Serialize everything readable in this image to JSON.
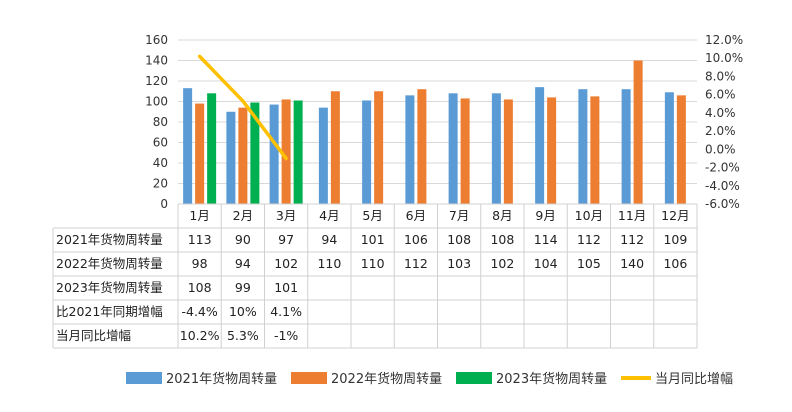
{
  "chart_data": {
    "type": "bar",
    "title": "",
    "categories": [
      "1月",
      "2月",
      "3月",
      "4月",
      "5月",
      "6月",
      "7月",
      "8月",
      "9月",
      "10月",
      "11月",
      "12月"
    ],
    "series": [
      {
        "name": "2021年货物周转量",
        "type": "bar",
        "axis": "left",
        "color": "#5B9BD5",
        "values": [
          113,
          90,
          97,
          94,
          101,
          106,
          108,
          108,
          114,
          112,
          112,
          109
        ]
      },
      {
        "name": "2022年货物周转量",
        "type": "bar",
        "axis": "left",
        "color": "#ED7D31",
        "values": [
          98,
          94,
          102,
          110,
          110,
          112,
          103,
          102,
          104,
          105,
          140,
          106
        ]
      },
      {
        "name": "2023年货物周转量",
        "type": "bar",
        "axis": "left",
        "color": "#00B050",
        "values": [
          108,
          99,
          101,
          null,
          null,
          null,
          null,
          null,
          null,
          null,
          null,
          null
        ]
      },
      {
        "name": "当月同比增幅",
        "type": "line",
        "axis": "right",
        "color": "#FFC000",
        "values": [
          10.2,
          5.3,
          -1,
          null,
          null,
          null,
          null,
          null,
          null,
          null,
          null,
          null
        ]
      }
    ],
    "extra_rows": [
      {
        "name": "比2021年同期增幅",
        "values": [
          "-4.4%",
          "10%",
          "4.1%",
          "",
          "",
          "",
          "",
          "",
          "",
          "",
          "",
          ""
        ]
      }
    ],
    "table_rows": [
      {
        "label": "2021年货物周转量",
        "cells": [
          "113",
          "90",
          "97",
          "94",
          "101",
          "106",
          "108",
          "108",
          "114",
          "112",
          "112",
          "109"
        ]
      },
      {
        "label": "2022年货物周转量",
        "cells": [
          "98",
          "94",
          "102",
          "110",
          "110",
          "112",
          "103",
          "102",
          "104",
          "105",
          "140",
          "106"
        ]
      },
      {
        "label": "2023年货物周转量",
        "cells": [
          "108",
          "99",
          "101",
          "",
          "",
          "",
          "",
          "",
          "",
          "",
          "",
          ""
        ]
      },
      {
        "label": "比2021年同期增幅",
        "cells": [
          "-4.4%",
          "10%",
          "4.1%",
          "",
          "",
          "",
          "",
          "",
          "",
          "",
          "",
          ""
        ]
      },
      {
        "label": "当月同比增幅",
        "cells": [
          "10.2%",
          "5.3%",
          "-1%",
          "",
          "",
          "",
          "",
          "",
          "",
          "",
          "",
          ""
        ]
      }
    ],
    "y_left": {
      "min": 0,
      "max": 160,
      "step": 20,
      "ticks": [
        "0",
        "20",
        "40",
        "60",
        "80",
        "100",
        "120",
        "140",
        "160"
      ]
    },
    "y_right": {
      "min": -6,
      "max": 12,
      "step": 2,
      "ticks": [
        "-6.0%",
        "-4.0%",
        "-2.0%",
        "0.0%",
        "2.0%",
        "4.0%",
        "6.0%",
        "8.0%",
        "10.0%",
        "12.0%"
      ]
    },
    "grid": true,
    "legend_position": "bottom"
  }
}
